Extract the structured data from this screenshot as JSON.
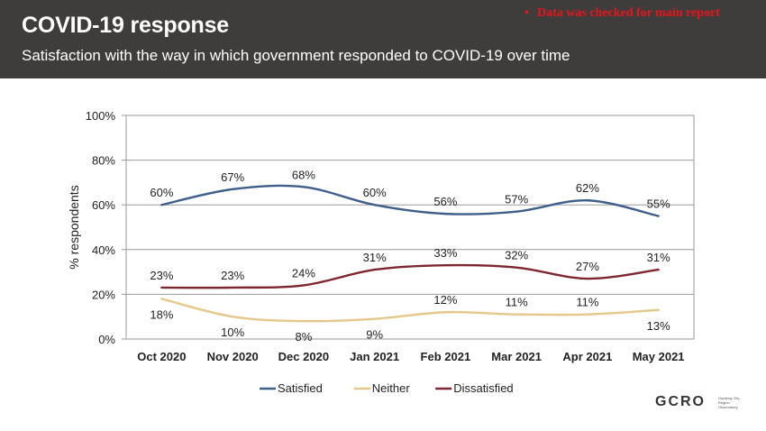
{
  "header": {
    "title": "COVID-19 response",
    "subtitle": "Satisfaction with the way in which government responded to COVID-19 over time"
  },
  "note": {
    "bullet": "•",
    "text": "Data was checked for main report",
    "color": "#e8141b"
  },
  "logo": {
    "text": "GCRO",
    "subtitle": "Gauteng City-Region Observatory"
  },
  "chart_data": {
    "type": "line",
    "categories": [
      "Oct 2020",
      "Nov 2020",
      "Dec 2020",
      "Jan 2021",
      "Feb 2021",
      "Mar 2021",
      "Apr 2021",
      "May 2021"
    ],
    "ylabel": "% respondents",
    "ylim": [
      0,
      100
    ],
    "yticks": [
      "0%",
      "20%",
      "40%",
      "60%",
      "80%",
      "100%"
    ],
    "grid": true,
    "legend_position": "bottom",
    "series": [
      {
        "name": "Satisfied",
        "color": "#3e5f8a",
        "values": [
          60,
          67,
          68,
          60,
          56,
          57,
          62,
          55
        ],
        "labels": [
          "60%",
          "67%",
          "68%",
          "60%",
          "56%",
          "57%",
          "62%",
          "55%"
        ]
      },
      {
        "name": "Neither",
        "color": "#e3c88a",
        "values": [
          18,
          10,
          8,
          9,
          12,
          11,
          11,
          13
        ],
        "labels": [
          "18%",
          "10%",
          "8%",
          "9%",
          "12%",
          "11%",
          "11%",
          "13%"
        ]
      },
      {
        "name": "Dissatisfied",
        "color": "#7d2630",
        "values": [
          23,
          23,
          24,
          31,
          33,
          32,
          27,
          31
        ],
        "labels": [
          "23%",
          "23%",
          "24%",
          "31%",
          "33%",
          "32%",
          "27%",
          "31%"
        ]
      }
    ]
  }
}
